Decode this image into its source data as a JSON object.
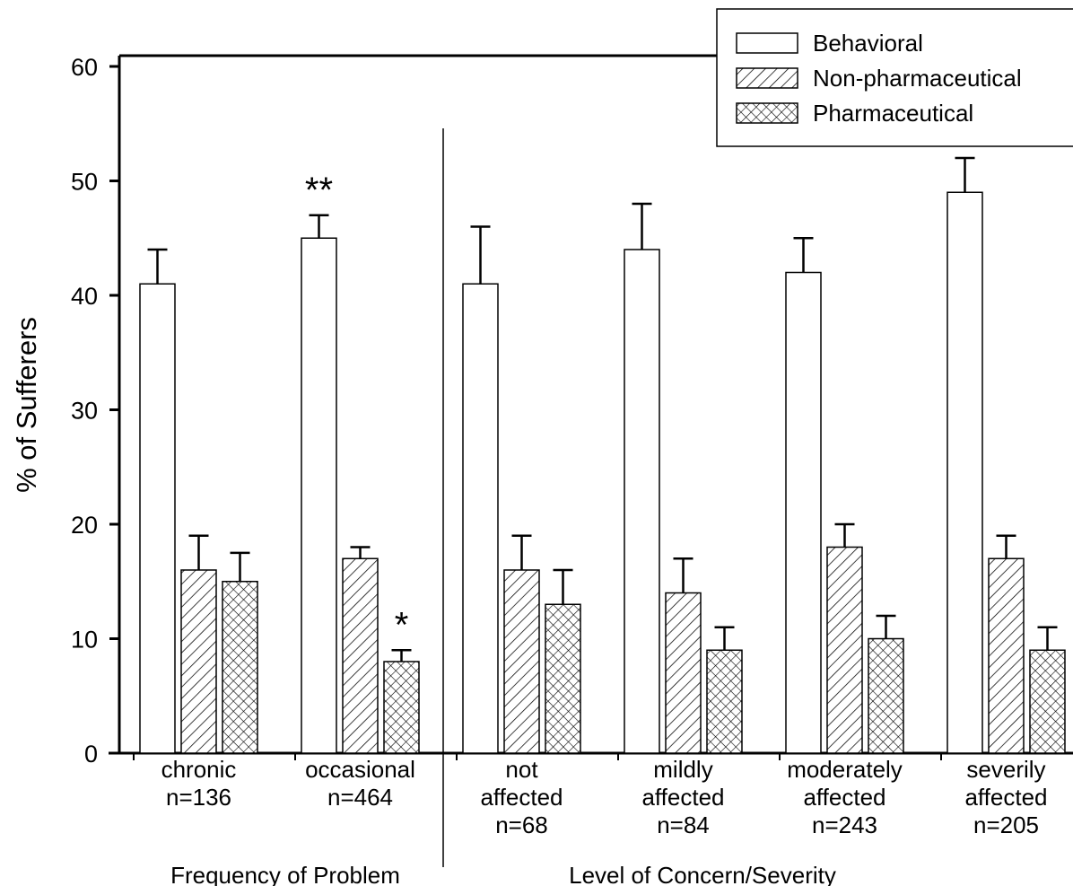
{
  "chart_data": {
    "type": "bar",
    "ylabel": "% of Sufferers",
    "ylim": [
      0,
      60
    ],
    "yticks": [
      0,
      10,
      20,
      30,
      40,
      50,
      60
    ],
    "grid": false,
    "legend_position": "top-right",
    "series": [
      {
        "name": "Behavioral",
        "pattern": "none",
        "values": [
          41,
          45,
          41,
          44,
          42,
          49
        ],
        "errors": [
          3,
          2,
          5,
          4,
          3,
          3
        ]
      },
      {
        "name": "Non-pharmaceutical",
        "pattern": "diagonal-hatch",
        "values": [
          16,
          17,
          16,
          14,
          18,
          17
        ],
        "errors": [
          3,
          1,
          3,
          3,
          2,
          2
        ]
      },
      {
        "name": "Pharmaceutical",
        "pattern": "crosshatch",
        "values": [
          15,
          8,
          13,
          9,
          10,
          9
        ],
        "errors": [
          2.5,
          1,
          3,
          2,
          2,
          2
        ]
      }
    ],
    "categories": [
      {
        "lines": [
          "chronic",
          "n=136"
        ]
      },
      {
        "lines": [
          "occasional",
          "n=464"
        ]
      },
      {
        "lines": [
          "not",
          "affected",
          "n=68"
        ]
      },
      {
        "lines": [
          "mildly",
          "affected",
          "n=84"
        ]
      },
      {
        "lines": [
          "moderately",
          "affected",
          "n=243"
        ]
      },
      {
        "lines": [
          "severily",
          "affected",
          "n=205"
        ]
      }
    ],
    "groups": [
      {
        "label": "Frequency of Problem",
        "categories": [
          0,
          1
        ]
      },
      {
        "label": "Level of Concern/Severity",
        "categories": [
          2,
          3,
          4,
          5
        ]
      }
    ],
    "annotations": [
      {
        "text": "**",
        "category": 1,
        "series": 0
      },
      {
        "text": "*",
        "category": 1,
        "series": 2
      }
    ]
  }
}
